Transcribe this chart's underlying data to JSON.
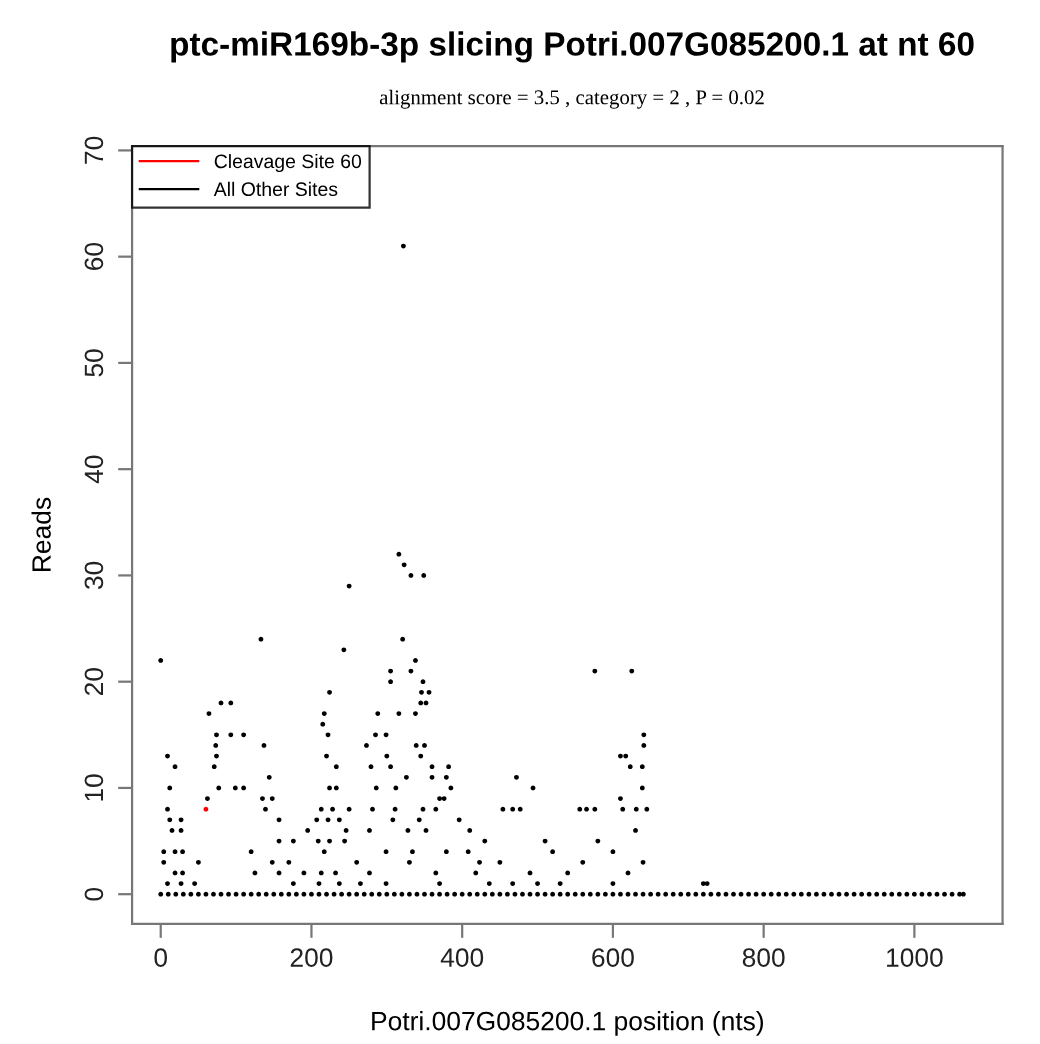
{
  "chart_data": {
    "type": "scatter",
    "title": "ptc-miR169b-3p slicing Potri.007G085200.1 at nt 60",
    "subtitle": "alignment score = 3.5 , category = 2 , P = 0.02",
    "xlabel": "Potri.007G085200.1 position (nts)",
    "ylabel": "Reads",
    "xlim": [
      -38,
      1117
    ],
    "ylim": [
      -2.8,
      70.4
    ],
    "xticks": [
      0,
      200,
      400,
      600,
      800,
      1000
    ],
    "yticks": [
      0,
      10,
      20,
      30,
      40,
      50,
      60,
      70
    ],
    "grid": false,
    "legend": "top left",
    "marker": "circle",
    "series": [
      {
        "name": "Cleavage Site 60",
        "color": "#ff0000",
        "x": [
          60
        ],
        "values": [
          8
        ]
      },
      {
        "name": "All Other Sites",
        "color": "#000000",
        "x": [
          0,
          9,
          19,
          12,
          9,
          12,
          27,
          15,
          27,
          4,
          19,
          29,
          4,
          19,
          29,
          9,
          27,
          64,
          80,
          93,
          74,
          93,
          110,
          73,
          74,
          71,
          77,
          99,
          110,
          62,
          135,
          148,
          139,
          157,
          157,
          176,
          148,
          170,
          157,
          176,
          133,
          144,
          137,
          250,
          243,
          224,
          217,
          215,
          222,
          220,
          233,
          224,
          233,
          213,
          228,
          250,
          207,
          222,
          237,
          246,
          209,
          224,
          244,
          217,
          213,
          232,
          210,
          237,
          322,
          316,
          323,
          332,
          349,
          321,
          305,
          332,
          338,
          305,
          348,
          346,
          356,
          345,
          352,
          288,
          316,
          338,
          285,
          299,
          273,
          339,
          350,
          300,
          345,
          279,
          305,
          360,
          382,
          326,
          360,
          379,
          286,
          312,
          385,
          370,
          376,
          281,
          311,
          348,
          365,
          308,
          343,
          396,
          277,
          328,
          352,
          410,
          299,
          334,
          379,
          408,
          330,
          423,
          277,
          365,
          418,
          299,
          370,
          436,
          467,
          472,
          454,
          467,
          494,
          477,
          556,
          565,
          576,
          576,
          625,
          641,
          641,
          610,
          617,
          623,
          639,
          639,
          610,
          613,
          631,
          645,
          720,
          725,
          430,
          450,
          490,
          510,
          520,
          540,
          560,
          580,
          600,
          620,
          630,
          500,
          530,
          600,
          640,
          45,
          50,
          120,
          125,
          190,
          195,
          260,
          265,
          0,
          10,
          20,
          30,
          40,
          50,
          60,
          70,
          80,
          90,
          100,
          110,
          120,
          130,
          140,
          150,
          160,
          170,
          180,
          190,
          200,
          210,
          220,
          230,
          240,
          250,
          260,
          270,
          280,
          290,
          300,
          310,
          320,
          330,
          340,
          350,
          360,
          370,
          380,
          390,
          400,
          410,
          420,
          430,
          440,
          450,
          460,
          470,
          480,
          490,
          500,
          510,
          520,
          530,
          540,
          550,
          560,
          570,
          580,
          590,
          600,
          610,
          620,
          630,
          640,
          650,
          660,
          670,
          680,
          690,
          700,
          710,
          720,
          730,
          740,
          750,
          760,
          770,
          780,
          790,
          800,
          810,
          820,
          830,
          840,
          850,
          860,
          870,
          880,
          890,
          900,
          910,
          920,
          930,
          940,
          950,
          960,
          970,
          980,
          990,
          1000,
          1010,
          1020,
          1030,
          1040,
          1050,
          1060,
          1065
        ],
        "values": [
          22,
          13,
          12,
          10,
          8,
          7,
          7,
          6,
          6,
          4,
          4,
          4,
          3,
          2,
          2,
          1,
          1,
          17,
          18,
          18,
          15,
          15,
          15,
          14,
          13,
          12,
          10,
          10,
          10,
          9,
          9,
          9,
          8,
          7,
          5,
          5,
          3,
          3,
          2,
          1,
          24,
          11,
          14,
          29,
          23,
          19,
          17,
          16,
          15,
          13,
          12,
          10,
          10,
          8,
          8,
          8,
          7,
          7,
          7,
          6,
          5,
          5,
          5,
          4,
          2,
          2,
          1,
          1,
          61,
          32,
          31,
          30,
          30,
          24,
          21,
          21,
          22,
          20,
          20,
          19,
          19,
          18,
          18,
          17,
          17,
          17,
          15,
          15,
          14,
          14,
          14,
          13,
          13,
          12,
          12,
          12,
          12,
          11,
          11,
          11,
          10,
          10,
          10,
          9,
          9,
          8,
          8,
          8,
          8,
          7,
          7,
          7,
          6,
          6,
          6,
          6,
          4,
          4,
          4,
          4,
          3,
          3,
          2,
          2,
          2,
          1,
          1,
          1,
          1,
          11,
          8,
          8,
          10,
          8,
          8,
          8,
          8,
          21,
          21,
          15,
          14,
          13,
          13,
          12,
          12,
          10,
          9,
          8,
          8,
          8,
          1,
          1,
          5,
          3,
          2,
          5,
          4,
          2,
          3,
          5,
          4,
          2,
          6,
          1,
          1,
          1,
          3,
          1,
          3,
          4,
          2,
          2,
          6,
          3,
          1,
          0,
          0,
          0,
          0,
          0,
          0,
          0,
          0,
          0,
          0,
          0,
          0,
          0,
          0,
          0,
          0,
          0,
          0,
          0,
          0,
          0,
          0,
          0,
          0,
          0,
          0,
          0,
          0,
          0,
          0,
          0,
          0,
          0,
          0,
          0,
          0,
          0,
          0,
          0,
          0,
          0,
          0,
          0,
          0,
          0,
          0,
          0,
          0,
          0,
          0,
          0,
          0,
          0,
          0,
          0,
          0,
          0,
          0,
          0,
          0,
          0,
          0,
          0,
          0,
          0,
          0,
          0,
          0,
          0,
          0,
          0,
          0,
          0,
          0,
          0,
          0,
          0,
          0,
          0,
          0,
          0,
          0,
          0,
          0,
          0,
          0,
          0,
          0,
          0,
          0,
          0,
          0,
          0,
          0,
          0,
          0,
          0,
          0,
          0,
          0,
          0,
          0,
          0,
          0,
          0,
          0,
          0,
          0
        ]
      }
    ]
  }
}
